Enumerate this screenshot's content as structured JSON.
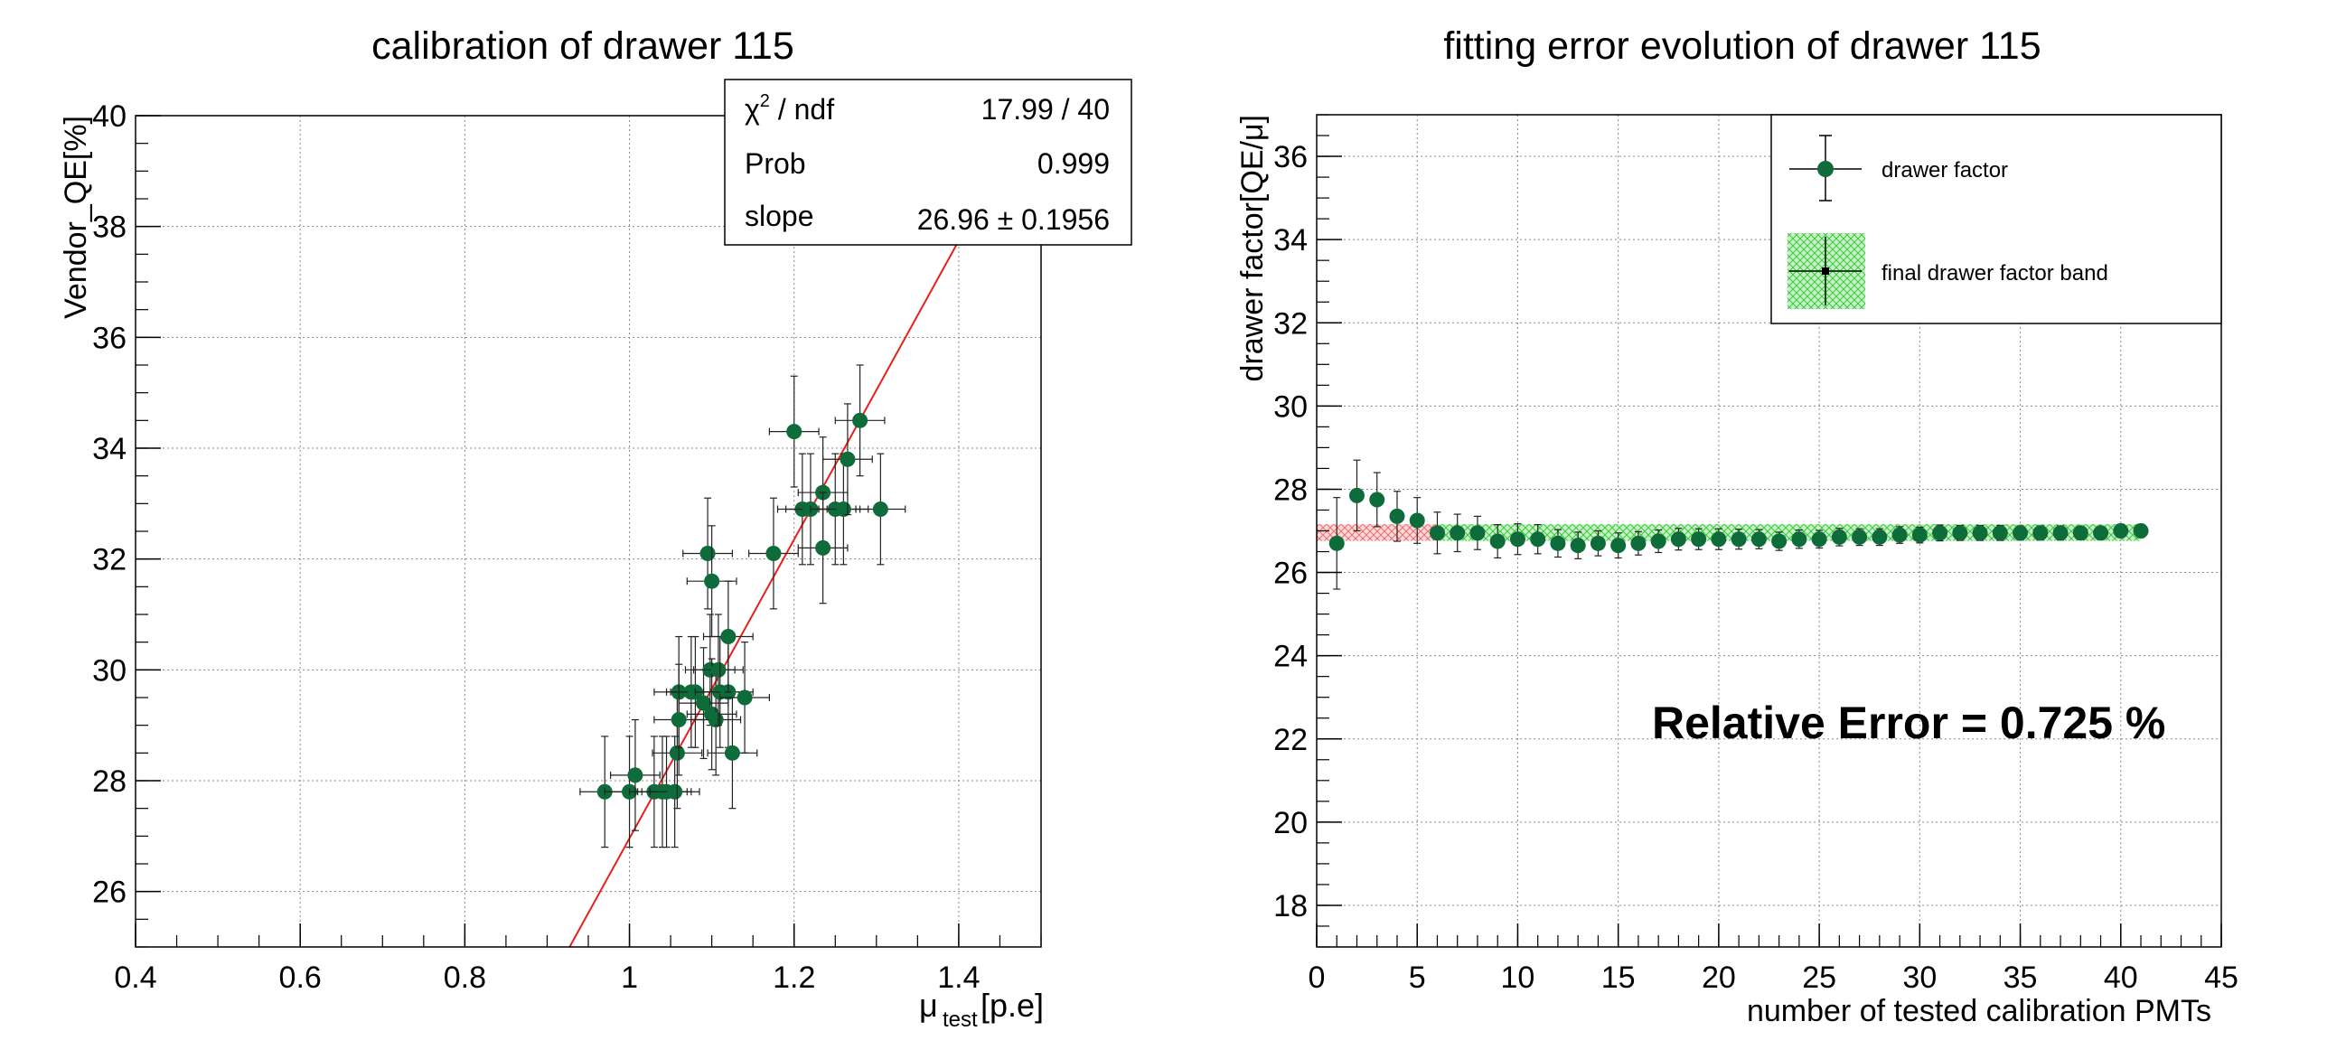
{
  "chart_data": [
    {
      "type": "scatter",
      "title": "calibration of drawer 115",
      "xlabel_main": "μ",
      "xlabel_sub": "test",
      "xlabel_unit": "[p.e]",
      "ylabel": "Vendor_QE[%]",
      "xlim": [
        0.4,
        1.5
      ],
      "ylim": [
        25,
        40
      ],
      "x_ticks": [
        "0.4",
        "0.6",
        "0.8",
        "1",
        "1.2",
        "1.4"
      ],
      "y_ticks": [
        "26",
        "28",
        "30",
        "32",
        "34",
        "36",
        "38",
        "40"
      ],
      "grid": true,
      "fit_line": {
        "slope": 26.96,
        "intercept": 0,
        "color": "#e8201a"
      },
      "marker_color": "#0e6b3a",
      "stats": [
        {
          "label_html": "χ² / ndf",
          "value": "17.99 / 40"
        },
        {
          "label_html": "Prob",
          "value": "0.999"
        },
        {
          "label_html": "slope",
          "value": "26.96 ± 0.1956"
        }
      ],
      "stats_labels": [
        "χ",
        "2",
        " / ndf",
        "Prob",
        "slope"
      ],
      "stats_values": [
        "17.99 / 40",
        "0.999",
        "26.96 ± 0.1956"
      ],
      "points": [
        {
          "x": 0.97,
          "y": 27.8,
          "ex": 0.03,
          "ey": 1.0
        },
        {
          "x": 1.0,
          "y": 27.8,
          "ex": 0.03,
          "ey": 1.0
        },
        {
          "x": 1.007,
          "y": 28.1,
          "ex": 0.03,
          "ey": 1.0
        },
        {
          "x": 1.03,
          "y": 27.8,
          "ex": 0.03,
          "ey": 1.0
        },
        {
          "x": 1.04,
          "y": 27.8,
          "ex": 0.03,
          "ey": 1.0
        },
        {
          "x": 1.045,
          "y": 27.8,
          "ex": 0.03,
          "ey": 1.0
        },
        {
          "x": 1.055,
          "y": 27.8,
          "ex": 0.03,
          "ey": 1.0
        },
        {
          "x": 1.058,
          "y": 28.5,
          "ex": 0.03,
          "ey": 1.0
        },
        {
          "x": 1.06,
          "y": 29.6,
          "ex": 0.03,
          "ey": 1.0
        },
        {
          "x": 1.06,
          "y": 29.1,
          "ex": 0.03,
          "ey": 1.0
        },
        {
          "x": 1.075,
          "y": 29.6,
          "ex": 0.03,
          "ey": 1.0
        },
        {
          "x": 1.08,
          "y": 29.6,
          "ex": 0.03,
          "ey": 1.0
        },
        {
          "x": 1.09,
          "y": 29.4,
          "ex": 0.03,
          "ey": 1.0
        },
        {
          "x": 1.095,
          "y": 32.1,
          "ex": 0.03,
          "ey": 1.0
        },
        {
          "x": 1.098,
          "y": 30.0,
          "ex": 0.03,
          "ey": 1.0
        },
        {
          "x": 1.1,
          "y": 31.6,
          "ex": 0.03,
          "ey": 1.0
        },
        {
          "x": 1.1,
          "y": 29.2,
          "ex": 0.03,
          "ey": 1.0
        },
        {
          "x": 1.105,
          "y": 29.1,
          "ex": 0.03,
          "ey": 1.0
        },
        {
          "x": 1.108,
          "y": 30.0,
          "ex": 0.03,
          "ey": 1.0
        },
        {
          "x": 1.11,
          "y": 29.6,
          "ex": 0.03,
          "ey": 1.0
        },
        {
          "x": 1.12,
          "y": 29.6,
          "ex": 0.03,
          "ey": 1.0
        },
        {
          "x": 1.12,
          "y": 30.6,
          "ex": 0.03,
          "ey": 1.0
        },
        {
          "x": 1.125,
          "y": 28.5,
          "ex": 0.03,
          "ey": 1.0
        },
        {
          "x": 1.14,
          "y": 29.5,
          "ex": 0.03,
          "ey": 1.0
        },
        {
          "x": 1.175,
          "y": 32.1,
          "ex": 0.03,
          "ey": 1.0
        },
        {
          "x": 1.2,
          "y": 34.3,
          "ex": 0.03,
          "ey": 1.0
        },
        {
          "x": 1.21,
          "y": 32.9,
          "ex": 0.03,
          "ey": 1.0
        },
        {
          "x": 1.22,
          "y": 32.9,
          "ex": 0.03,
          "ey": 1.0
        },
        {
          "x": 1.235,
          "y": 33.2,
          "ex": 0.03,
          "ey": 1.0
        },
        {
          "x": 1.235,
          "y": 32.2,
          "ex": 0.03,
          "ey": 1.0
        },
        {
          "x": 1.25,
          "y": 32.9,
          "ex": 0.03,
          "ey": 1.0
        },
        {
          "x": 1.26,
          "y": 32.9,
          "ex": 0.03,
          "ey": 1.0
        },
        {
          "x": 1.265,
          "y": 33.8,
          "ex": 0.03,
          "ey": 1.0
        },
        {
          "x": 1.28,
          "y": 34.5,
          "ex": 0.03,
          "ey": 1.0
        },
        {
          "x": 1.305,
          "y": 32.9,
          "ex": 0.03,
          "ey": 1.0
        }
      ]
    },
    {
      "type": "scatter",
      "title": "fitting error evolution of drawer 115",
      "xlabel": "number of tested calibration PMTs",
      "ylabel": "drawer factor[QE/μ]",
      "xlim": [
        0,
        45
      ],
      "ylim": [
        17,
        37
      ],
      "x_ticks": [
        "0",
        "5",
        "10",
        "15",
        "20",
        "25",
        "30",
        "35",
        "40",
        "45"
      ],
      "y_ticks": [
        "18",
        "20",
        "22",
        "24",
        "26",
        "28",
        "30",
        "32",
        "34",
        "36"
      ],
      "grid": true,
      "marker_color": "#0e6b3a",
      "annotation": "Relative Error = 0.725 %",
      "legend_placement": "top-right",
      "legend": [
        {
          "name": "drawer factor"
        },
        {
          "name": "final drawer factor band"
        }
      ],
      "band_red": {
        "x0": 0,
        "x1": 6,
        "y0": 26.76,
        "y1": 27.16,
        "color": "#e87070"
      },
      "band_green": {
        "x0": 6,
        "x1": 41,
        "y0": 26.76,
        "y1": 27.16,
        "color": "#3cc83c"
      },
      "series": [
        {
          "name": "drawer factor",
          "x": [
            1,
            2,
            3,
            4,
            5,
            6,
            7,
            8,
            9,
            10,
            11,
            12,
            13,
            14,
            15,
            16,
            17,
            18,
            19,
            20,
            21,
            22,
            23,
            24,
            25,
            26,
            27,
            28,
            29,
            30,
            31,
            32,
            33,
            34,
            35,
            36,
            37,
            38,
            39,
            40,
            41
          ],
          "y": [
            26.7,
            27.85,
            27.75,
            27.35,
            27.25,
            26.95,
            26.95,
            26.95,
            26.75,
            26.8,
            26.8,
            26.7,
            26.65,
            26.7,
            26.65,
            26.7,
            26.75,
            26.8,
            26.8,
            26.8,
            26.8,
            26.8,
            26.75,
            26.8,
            26.8,
            26.85,
            26.85,
            26.85,
            26.9,
            26.9,
            26.95,
            26.95,
            26.95,
            26.95,
            26.95,
            26.95,
            26.95,
            26.95,
            26.95,
            27.0,
            27.0
          ],
          "err": [
            1.1,
            0.85,
            0.65,
            0.6,
            0.55,
            0.5,
            0.45,
            0.4,
            0.4,
            0.37,
            0.35,
            0.33,
            0.32,
            0.3,
            0.3,
            0.28,
            0.27,
            0.26,
            0.25,
            0.25,
            0.24,
            0.23,
            0.22,
            0.22,
            0.21,
            0.21,
            0.2,
            0.2,
            0.2,
            0.19,
            0.19,
            0.18,
            0.18,
            0.18,
            0.17,
            0.17,
            0.17,
            0.16,
            0.16,
            0.16,
            0.16
          ]
        }
      ]
    }
  ]
}
